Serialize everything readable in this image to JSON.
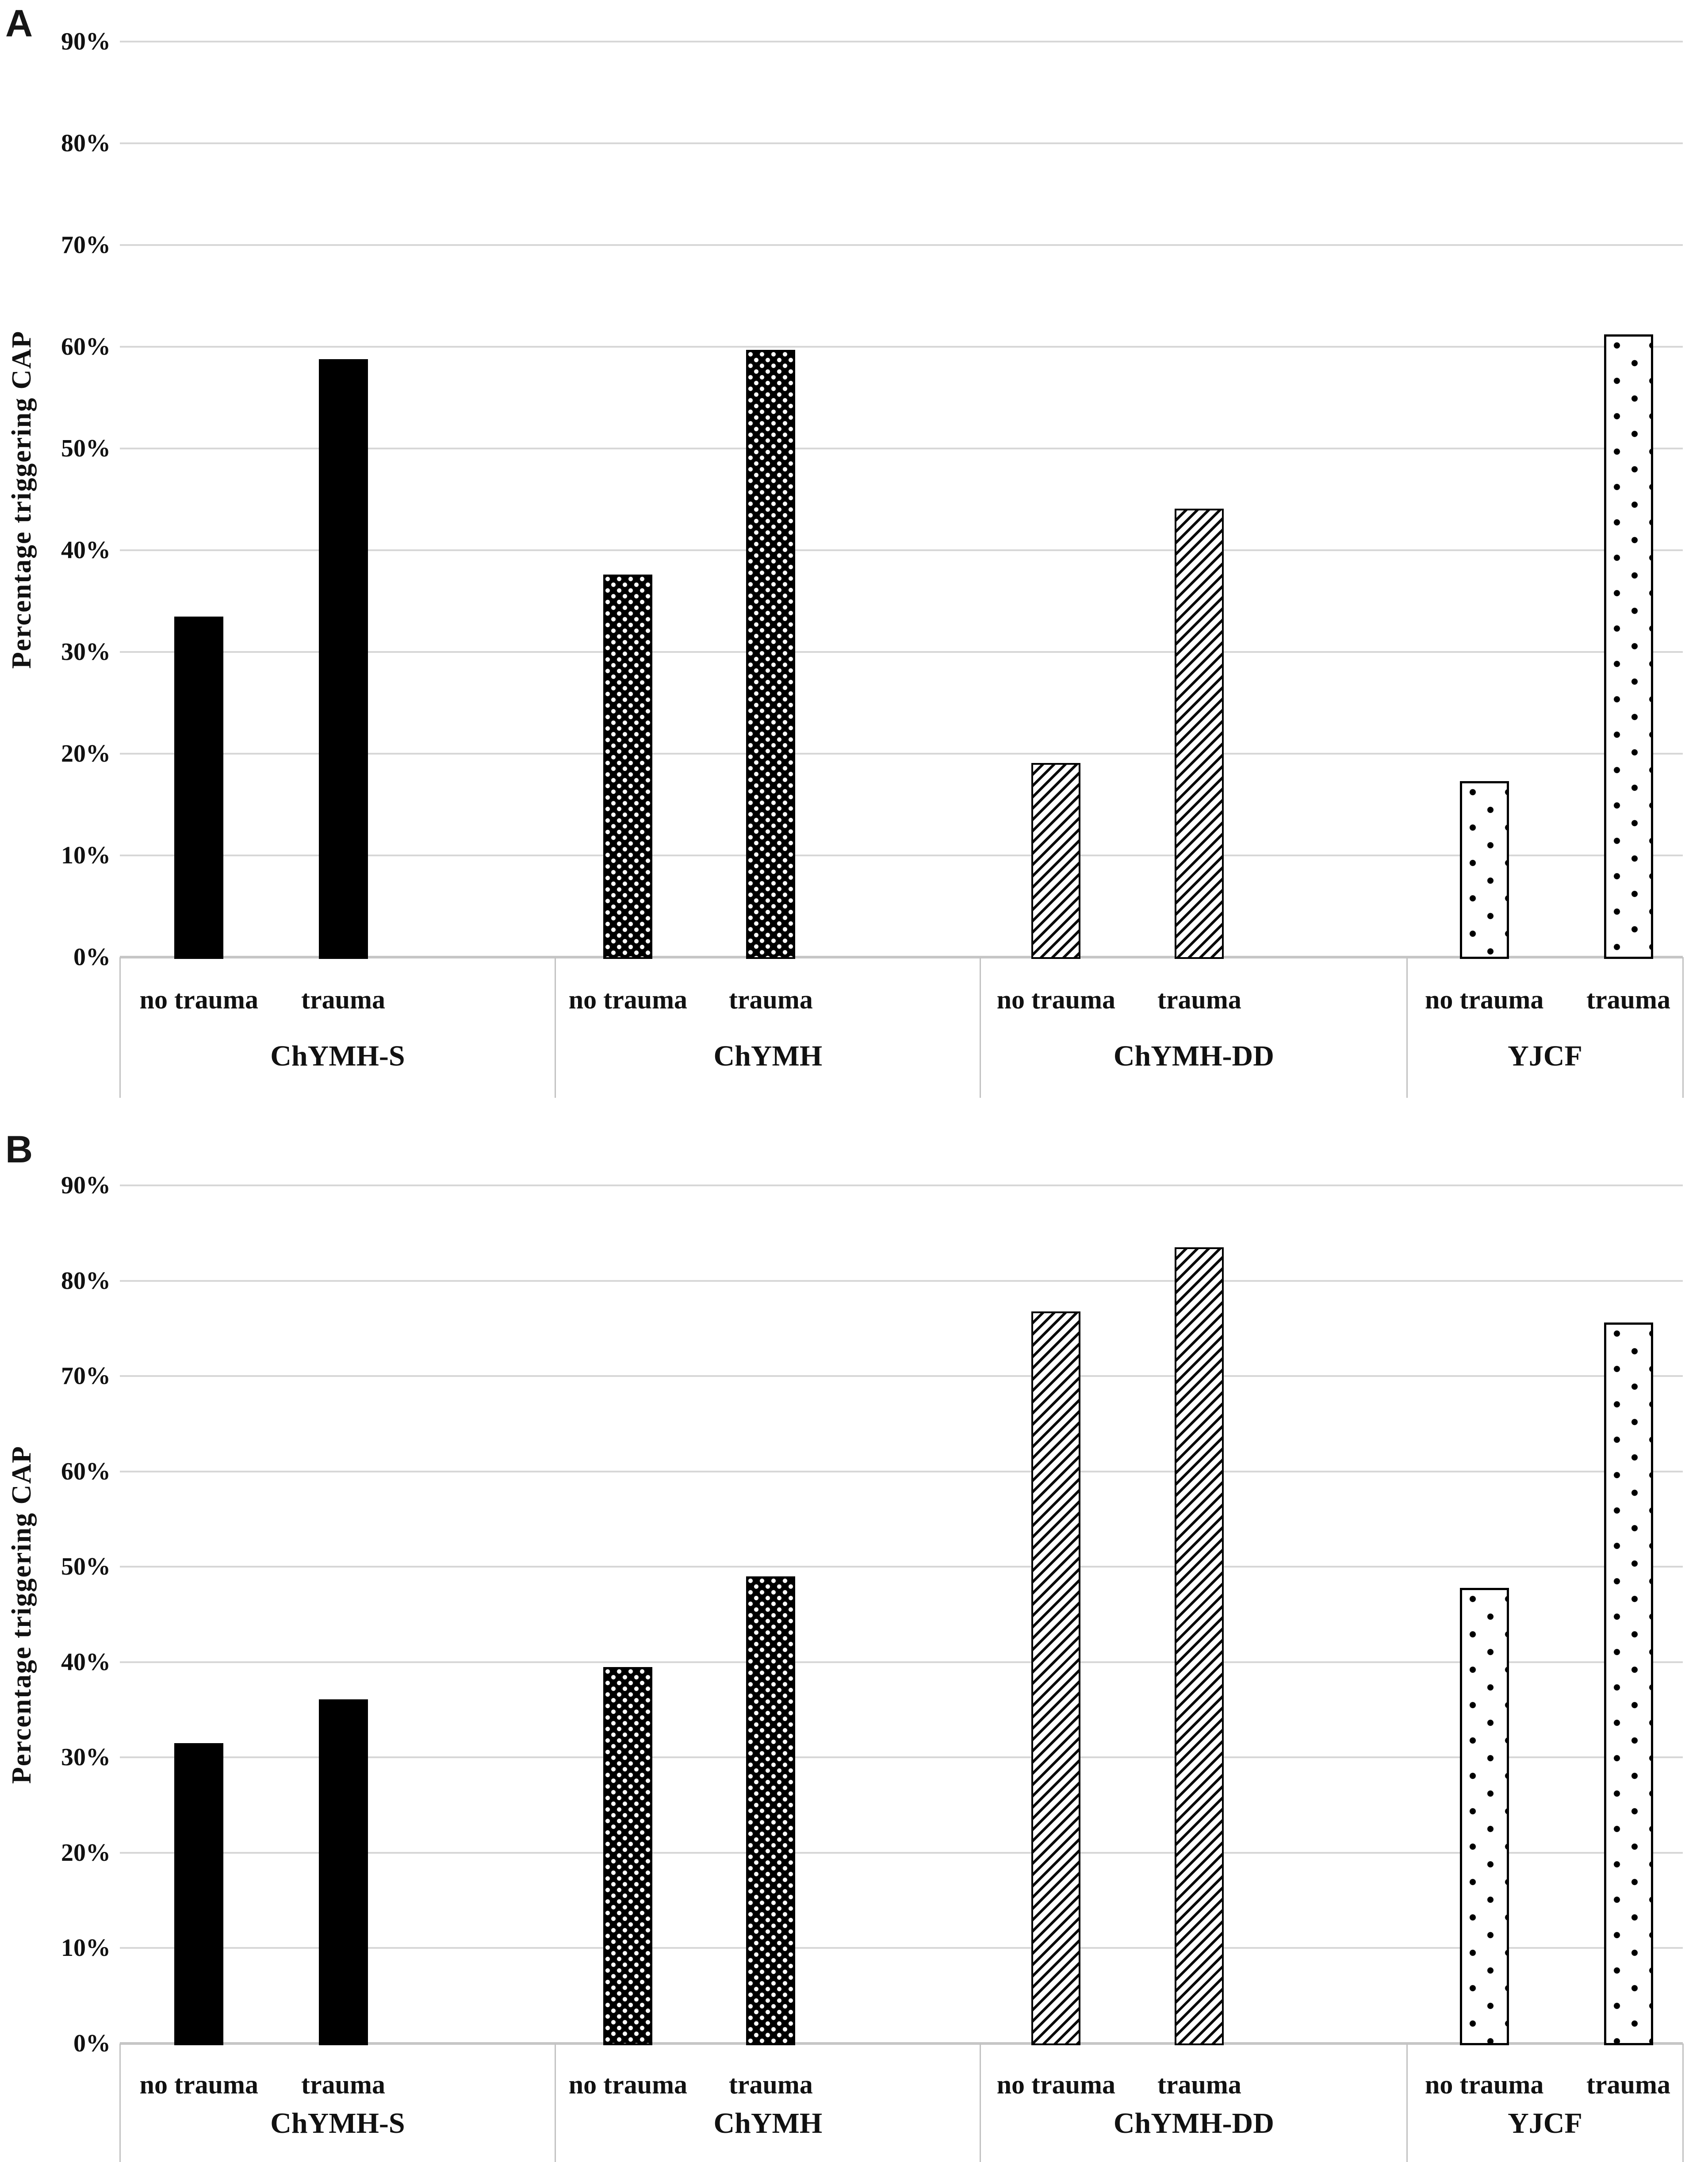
{
  "figure": {
    "description": "Two stacked grouped bar chart panels comparing percentage of youth triggering a CAP, by trauma status, across four assessment instruments",
    "background_color": "#ffffff",
    "text_color": "#111111",
    "gridline_color": "#d7d7d7",
    "bar_color": "#000000"
  },
  "y_axis": {
    "title": "Percentage triggering CAP",
    "tick_labels": [
      "0%",
      "10%",
      "20%",
      "30%",
      "40%",
      "50%",
      "60%",
      "70%",
      "80%",
      "90%"
    ],
    "range": [
      0,
      90
    ]
  },
  "conditions": [
    "no trauma",
    "trauma"
  ],
  "categories": [
    "ChYMH-S",
    "ChYMH",
    "ChYMH-DD",
    "YJCF"
  ],
  "chart_data": [
    {
      "type": "bar",
      "panel_label": "A",
      "ylabel": "Percentage triggering CAP",
      "ylim": [
        0,
        90
      ],
      "grid": true,
      "legend": "none",
      "categories": [
        "ChYMH-S",
        "ChYMH",
        "ChYMH-DD",
        "YJCF"
      ],
      "series": [
        {
          "name": "no trauma",
          "values": [
            33.5,
            37.6,
            19.1,
            17.3
          ]
        },
        {
          "name": "trauma",
          "values": [
            58.8,
            59.7,
            44.1,
            61.2
          ]
        }
      ],
      "bar_patterns": [
        "solid-black",
        "checkered-dots",
        "diagonal-stripes",
        "polka-dots"
      ]
    },
    {
      "type": "bar",
      "panel_label": "B",
      "ylabel": "Percentage triggering CAP",
      "ylim": [
        0,
        90
      ],
      "grid": true,
      "legend": "none",
      "categories": [
        "ChYMH-S",
        "ChYMH",
        "ChYMH-DD",
        "YJCF"
      ],
      "series": [
        {
          "name": "no trauma",
          "values": [
            31.5,
            39.5,
            76.8,
            47.8
          ]
        },
        {
          "name": "trauma",
          "values": [
            36.1,
            49.0,
            83.5,
            75.6
          ]
        }
      ],
      "bar_patterns": [
        "solid-black",
        "checkered-dots",
        "diagonal-stripes",
        "polka-dots"
      ]
    }
  ]
}
